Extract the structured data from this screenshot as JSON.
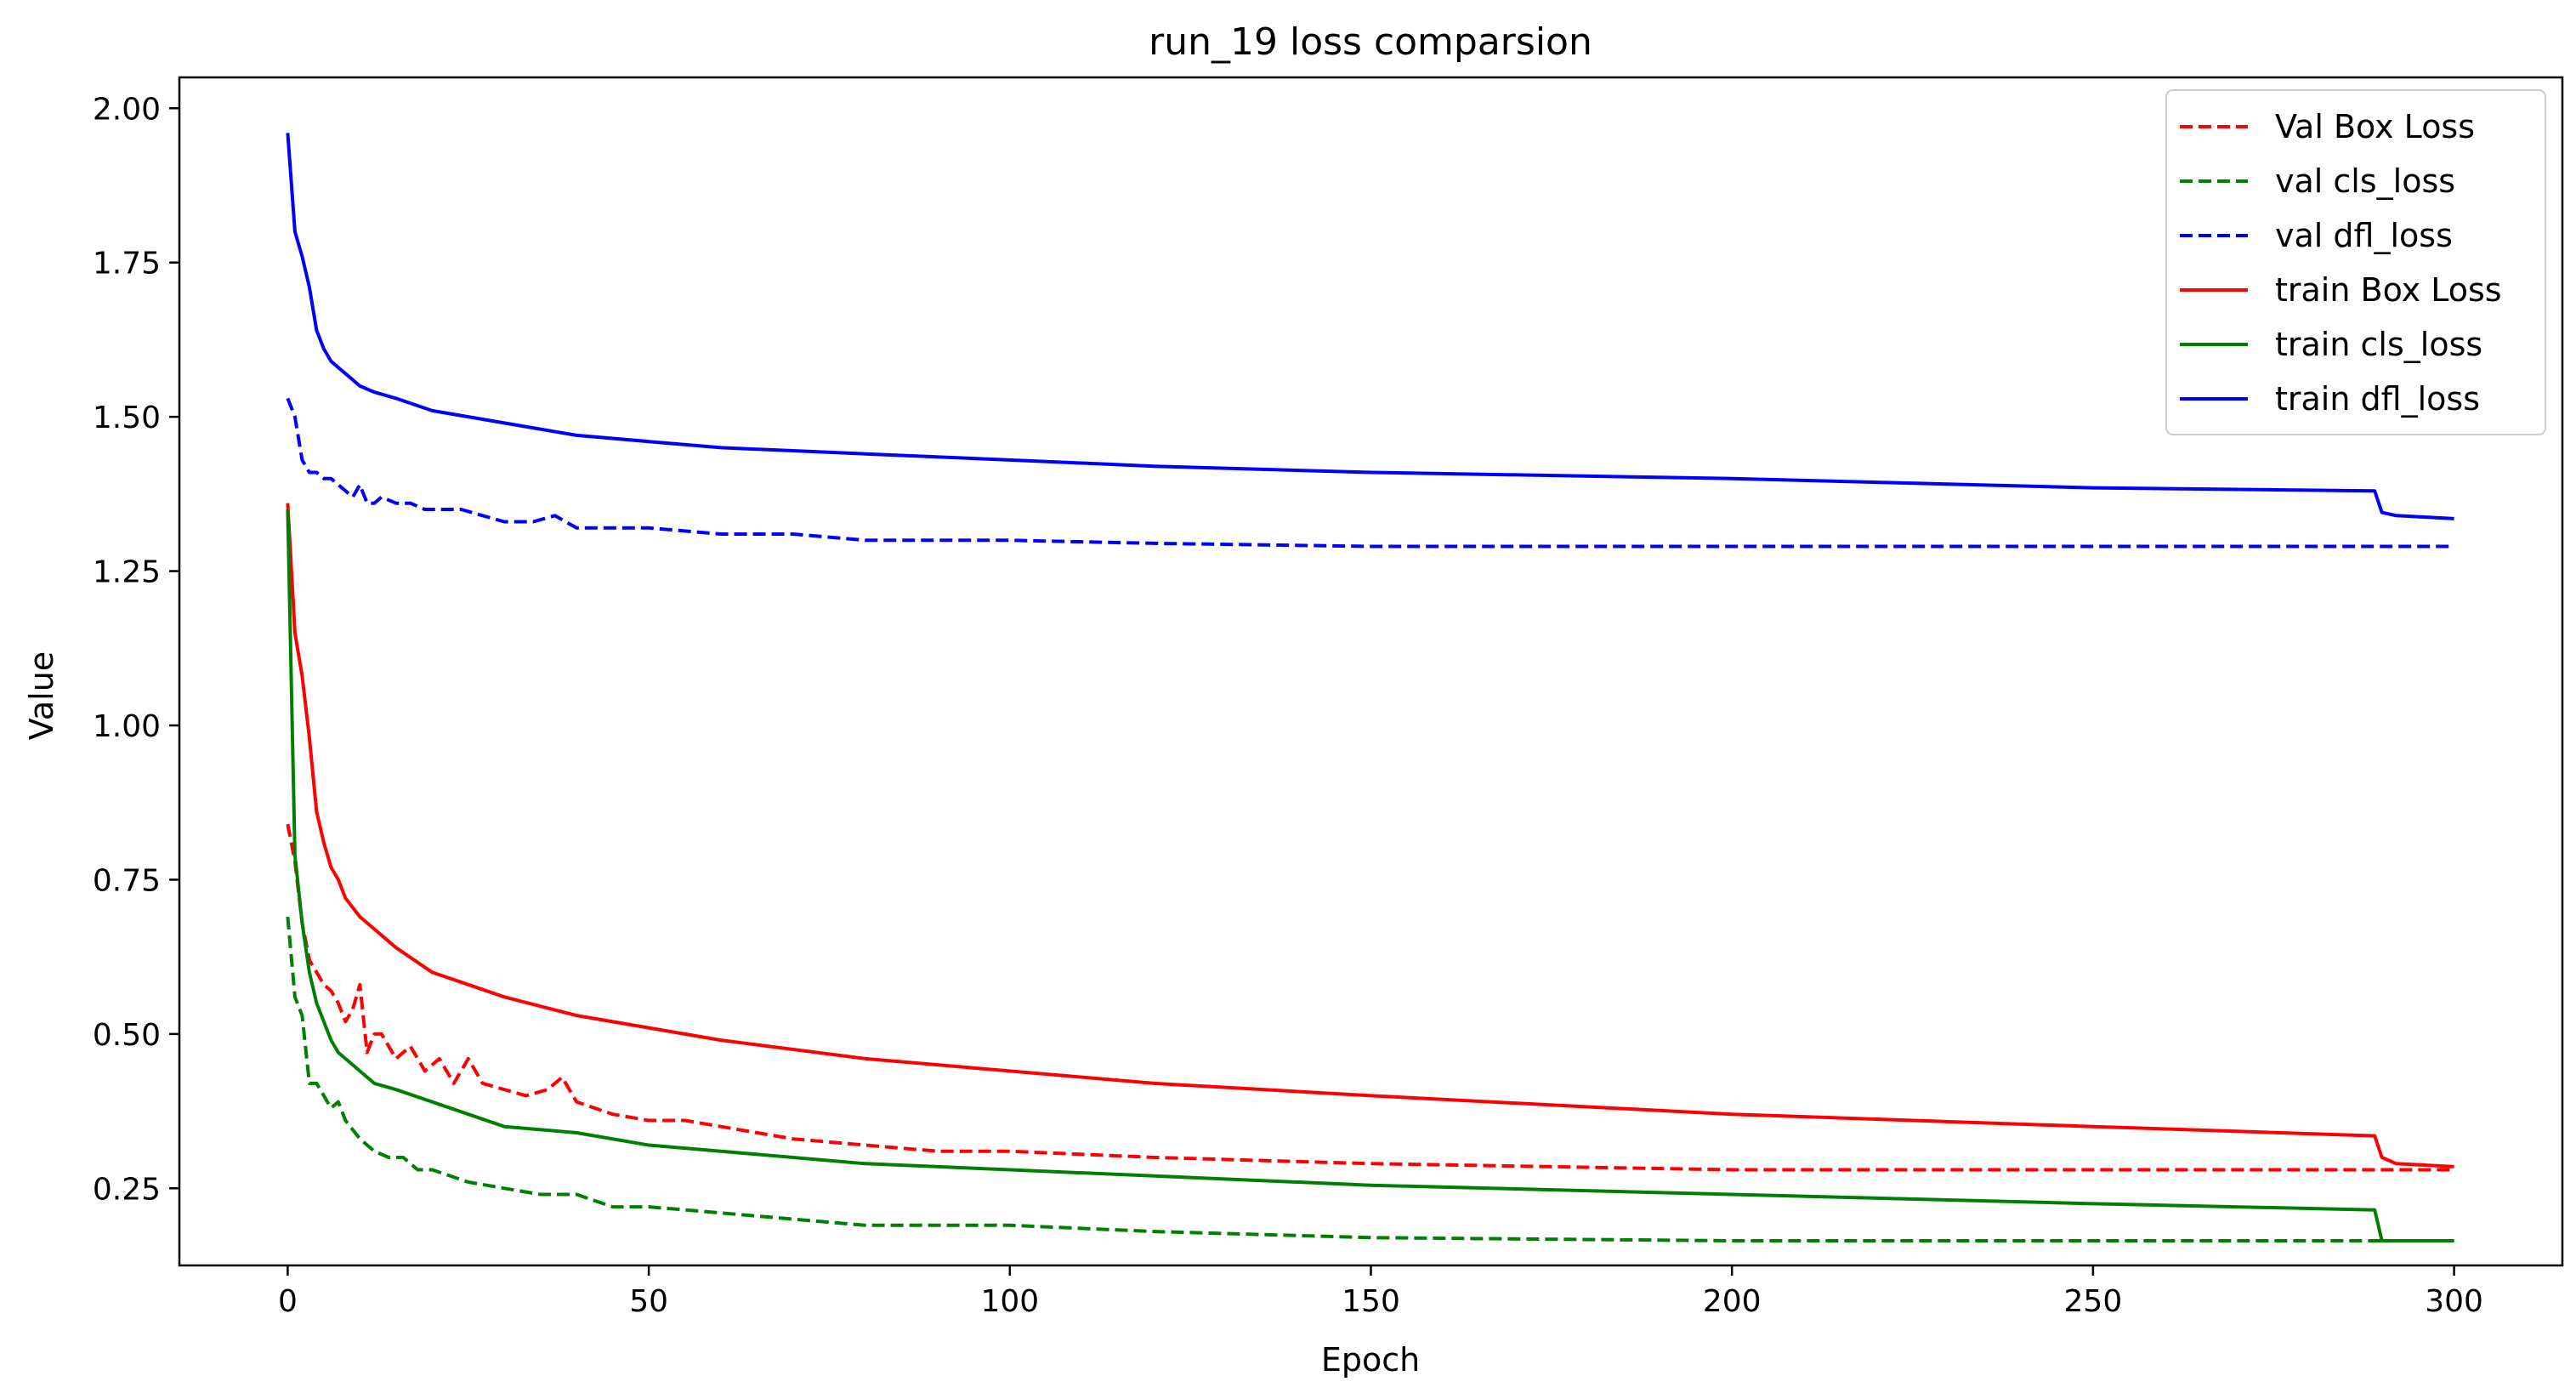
{
  "chart_data": {
    "type": "line",
    "title": "run_19 loss comparsion",
    "xlabel": "Epoch",
    "ylabel": "Value",
    "xlim": [
      -15,
      315
    ],
    "ylim": [
      0.125,
      2.05
    ],
    "xticks": [
      0,
      50,
      100,
      150,
      200,
      250,
      300
    ],
    "xtick_labels": [
      "0",
      "50",
      "100",
      "150",
      "200",
      "250",
      "300"
    ],
    "yticks": [
      0.25,
      0.5,
      0.75,
      1.0,
      1.25,
      1.5,
      1.75,
      2.0
    ],
    "ytick_labels": [
      "0.25",
      "0.50",
      "0.75",
      "1.00",
      "1.25",
      "1.50",
      "1.75",
      "2.00"
    ],
    "grid": false,
    "legend_position": "top-right",
    "series": [
      {
        "name": "Val Box Loss",
        "color": "#ff0000",
        "style": "dashed",
        "x": [
          0,
          1,
          2,
          3,
          4,
          5,
          6,
          7,
          8,
          9,
          10,
          11,
          12,
          13,
          15,
          17,
          19,
          21,
          23,
          25,
          27,
          30,
          33,
          36,
          38,
          40,
          45,
          50,
          55,
          60,
          65,
          70,
          80,
          90,
          100,
          120,
          150,
          200,
          250,
          300
        ],
        "y": [
          0.84,
          0.78,
          0.68,
          0.62,
          0.6,
          0.58,
          0.57,
          0.55,
          0.52,
          0.54,
          0.58,
          0.47,
          0.5,
          0.5,
          0.46,
          0.48,
          0.44,
          0.46,
          0.42,
          0.46,
          0.42,
          0.41,
          0.4,
          0.41,
          0.43,
          0.39,
          0.37,
          0.36,
          0.36,
          0.35,
          0.34,
          0.33,
          0.32,
          0.31,
          0.31,
          0.3,
          0.29,
          0.28,
          0.28,
          0.28
        ]
      },
      {
        "name": "val cls_loss",
        "color": "#008000",
        "style": "dashed",
        "x": [
          0,
          1,
          2,
          3,
          4,
          5,
          6,
          7,
          8,
          10,
          12,
          14,
          16,
          18,
          20,
          25,
          30,
          35,
          40,
          45,
          50,
          60,
          70,
          80,
          100,
          120,
          150,
          200,
          250,
          300
        ],
        "y": [
          0.69,
          0.56,
          0.53,
          0.42,
          0.42,
          0.4,
          0.38,
          0.39,
          0.36,
          0.33,
          0.31,
          0.3,
          0.3,
          0.28,
          0.28,
          0.26,
          0.25,
          0.24,
          0.24,
          0.22,
          0.22,
          0.21,
          0.2,
          0.19,
          0.19,
          0.18,
          0.17,
          0.165,
          0.165,
          0.165
        ]
      },
      {
        "name": "val dfl_loss",
        "color": "#0000ff",
        "style": "dashed",
        "x": [
          0,
          1,
          2,
          3,
          4,
          5,
          6,
          7,
          8,
          9,
          10,
          11,
          12,
          13,
          15,
          17,
          19,
          21,
          24,
          27,
          30,
          34,
          37,
          40,
          45,
          50,
          60,
          70,
          80,
          100,
          120,
          150,
          200,
          250,
          300
        ],
        "y": [
          1.53,
          1.5,
          1.43,
          1.41,
          1.41,
          1.4,
          1.4,
          1.39,
          1.38,
          1.37,
          1.39,
          1.36,
          1.36,
          1.37,
          1.36,
          1.36,
          1.35,
          1.35,
          1.35,
          1.34,
          1.33,
          1.33,
          1.34,
          1.32,
          1.32,
          1.32,
          1.31,
          1.31,
          1.3,
          1.3,
          1.295,
          1.29,
          1.29,
          1.29,
          1.29
        ]
      },
      {
        "name": "train Box Loss",
        "color": "#ff0000",
        "style": "solid",
        "x": [
          0,
          1,
          2,
          3,
          4,
          5,
          6,
          7,
          8,
          10,
          12,
          15,
          20,
          25,
          30,
          40,
          50,
          60,
          80,
          100,
          120,
          150,
          200,
          250,
          289,
          290,
          292,
          300
        ],
        "y": [
          1.36,
          1.15,
          1.08,
          0.98,
          0.86,
          0.81,
          0.77,
          0.75,
          0.72,
          0.69,
          0.67,
          0.64,
          0.6,
          0.58,
          0.56,
          0.53,
          0.51,
          0.49,
          0.46,
          0.44,
          0.42,
          0.4,
          0.37,
          0.35,
          0.335,
          0.3,
          0.29,
          0.285
        ]
      },
      {
        "name": "train cls_loss",
        "color": "#008000",
        "style": "solid",
        "x": [
          0,
          1,
          2,
          3,
          4,
          5,
          6,
          7,
          8,
          10,
          12,
          15,
          20,
          25,
          30,
          40,
          50,
          60,
          80,
          100,
          120,
          150,
          200,
          250,
          289,
          290,
          292,
          300
        ],
        "y": [
          1.35,
          0.79,
          0.68,
          0.6,
          0.55,
          0.52,
          0.49,
          0.47,
          0.46,
          0.44,
          0.42,
          0.41,
          0.39,
          0.37,
          0.35,
          0.34,
          0.32,
          0.31,
          0.29,
          0.28,
          0.27,
          0.255,
          0.24,
          0.225,
          0.215,
          0.165,
          0.165,
          0.165
        ]
      },
      {
        "name": "train dfl_loss",
        "color": "#0000ff",
        "style": "solid",
        "x": [
          0,
          1,
          2,
          3,
          4,
          5,
          6,
          7,
          8,
          10,
          12,
          15,
          20,
          25,
          30,
          40,
          50,
          60,
          80,
          100,
          120,
          150,
          200,
          250,
          289,
          290,
          292,
          300
        ],
        "y": [
          1.96,
          1.8,
          1.76,
          1.71,
          1.64,
          1.61,
          1.59,
          1.58,
          1.57,
          1.55,
          1.54,
          1.53,
          1.51,
          1.5,
          1.49,
          1.47,
          1.46,
          1.45,
          1.44,
          1.43,
          1.42,
          1.41,
          1.4,
          1.385,
          1.38,
          1.345,
          1.34,
          1.335
        ]
      }
    ]
  }
}
